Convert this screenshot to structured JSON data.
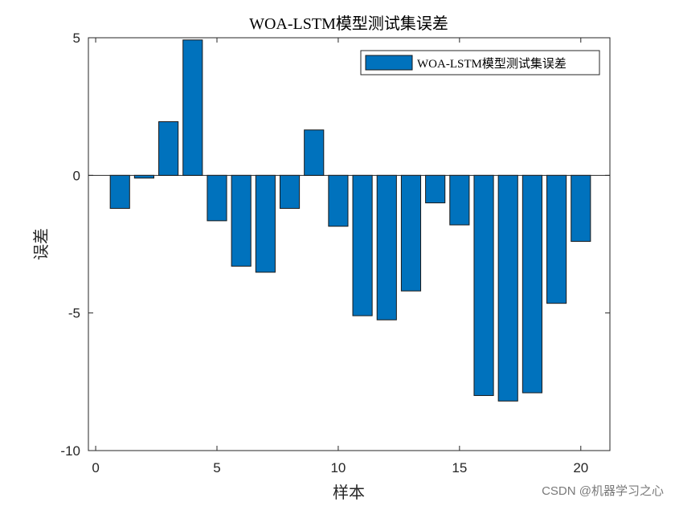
{
  "chart_data": {
    "type": "bar",
    "title": "WOA-LSTM模型测试集误差",
    "xlabel": "样本",
    "ylabel": "误差",
    "x": [
      1,
      2,
      3,
      4,
      5,
      6,
      7,
      8,
      9,
      10,
      11,
      12,
      13,
      14,
      15,
      16,
      17,
      18,
      19,
      20
    ],
    "series": [
      {
        "name": "WOA-LSTM模型测试集误差",
        "values": [
          -1.2,
          -0.1,
          1.95,
          4.92,
          -1.65,
          -3.3,
          -3.52,
          -1.2,
          1.65,
          -1.85,
          -5.1,
          -5.25,
          -4.2,
          -1.0,
          -1.8,
          -8.0,
          -8.2,
          -7.9,
          -4.65,
          -2.4
        ]
      }
    ],
    "xlim": [
      -0.3,
      21.2
    ],
    "ylim": [
      -10,
      5
    ],
    "xticks": [
      "0",
      "5",
      "10",
      "15",
      "20"
    ],
    "yticks": [
      "5",
      "0",
      "-5",
      "-10"
    ],
    "legend_position": "top-right",
    "grid": false,
    "colors": {
      "bar_fill": "#0072BD",
      "bar_edge": "#1a1a1a",
      "axis": "#262626"
    }
  },
  "watermark": "CSDN @机器学习之心"
}
